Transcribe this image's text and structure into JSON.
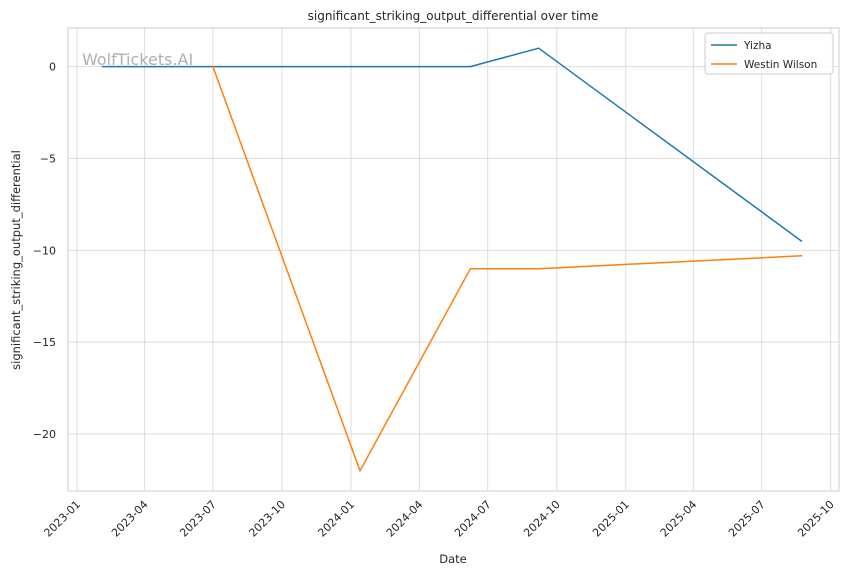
{
  "watermark": "WolfTickets.AI",
  "chart_data": {
    "type": "line",
    "title": "significant_striking_output_differential over time",
    "xlabel": "Date",
    "ylabel": "significant_striking_output_differential",
    "x_ticks": [
      "2023-01",
      "2023-04",
      "2023-07",
      "2023-10",
      "2024-01",
      "2024-04",
      "2024-07",
      "2024-10",
      "2025-01",
      "2025-04",
      "2025-07",
      "2025-10"
    ],
    "y_ticks": [
      0,
      -5,
      -10,
      -15,
      -20
    ],
    "y_tick_labels": [
      "0",
      "−5",
      "−10",
      "−15",
      "−20"
    ],
    "xlim": [
      "2022-12-20",
      "2025-10-12"
    ],
    "ylim": [
      -23.1,
      2.1
    ],
    "grid": true,
    "legend_position": "top-right",
    "series": [
      {
        "name": "Yizha",
        "color": "#1f77b4",
        "points": [
          {
            "x": "2023-02-04",
            "y": 0
          },
          {
            "x": "2024-06-08",
            "y": 0
          },
          {
            "x": "2024-09-07",
            "y": 1
          },
          {
            "x": "2025-08-23",
            "y": -9.5
          }
        ]
      },
      {
        "name": "Westin Wilson",
        "color": "#ff7f0e",
        "points": [
          {
            "x": "2023-07-01",
            "y": 0
          },
          {
            "x": "2024-01-13",
            "y": -22
          },
          {
            "x": "2024-06-08",
            "y": -11
          },
          {
            "x": "2024-09-07",
            "y": -11
          },
          {
            "x": "2025-08-23",
            "y": -10.3
          }
        ]
      }
    ]
  }
}
